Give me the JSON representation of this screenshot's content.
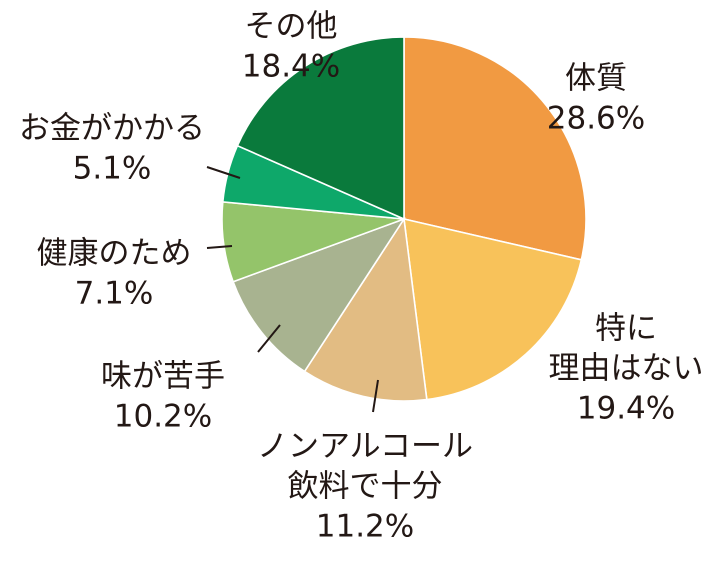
{
  "chart_data": {
    "type": "pie",
    "start_angle_deg": 0,
    "direction": "clockwise",
    "slices": [
      {
        "label": [
          "体質"
        ],
        "value": 28.6,
        "value_text": "28.6%",
        "color": "#f19a42"
      },
      {
        "label": [
          "特に",
          "理由はない"
        ],
        "value": 19.4,
        "value_text": "19.4%",
        "color": "#f8c25a"
      },
      {
        "label": [
          "ノンアルコール",
          "飲料で十分"
        ],
        "value": 11.2,
        "value_text": "11.2%",
        "color": "#e2bc83"
      },
      {
        "label": [
          "味が苦手"
        ],
        "value": 10.2,
        "value_text": "10.2%",
        "color": "#a8b390"
      },
      {
        "label": [
          "健康のため"
        ],
        "value": 7.1,
        "value_text": "7.1%",
        "color": "#94c46a"
      },
      {
        "label": [
          "お金がかかる"
        ],
        "value": 5.1,
        "value_text": "5.1%",
        "color": "#0ea86a"
      },
      {
        "label": [
          "その他"
        ],
        "value": 18.4,
        "value_text": "18.4%",
        "color": "#0a7a3c"
      }
    ]
  }
}
